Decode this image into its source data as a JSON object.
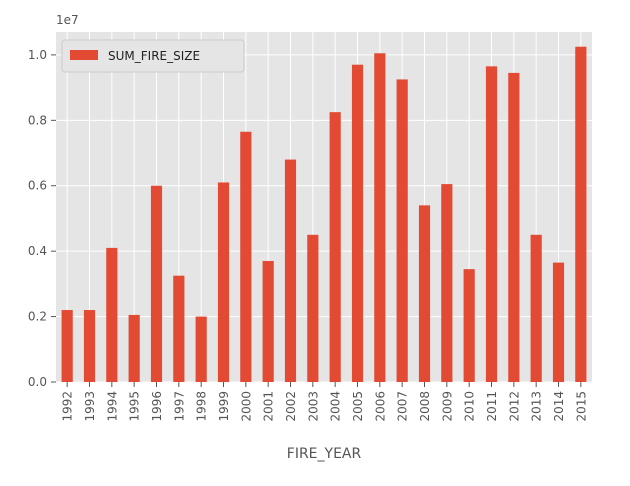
{
  "chart_data": {
    "type": "bar",
    "title": "",
    "xlabel": "FIRE_YEAR",
    "ylabel": "",
    "y_offset_label": "1e7",
    "ylim": [
      0.0,
      1.07
    ],
    "yticks": [
      0.0,
      0.2,
      0.4,
      0.6,
      0.8,
      1.0
    ],
    "ytick_labels": [
      "0.0",
      "0.2",
      "0.4",
      "0.6",
      "0.8",
      "1.0"
    ],
    "grid": true,
    "legend_position": "top-left",
    "categories": [
      "1992",
      "1993",
      "1994",
      "1995",
      "1996",
      "1997",
      "1998",
      "1999",
      "2000",
      "2001",
      "2002",
      "2003",
      "2004",
      "2005",
      "2006",
      "2007",
      "2008",
      "2009",
      "2010",
      "2011",
      "2012",
      "2013",
      "2014",
      "2015"
    ],
    "series": [
      {
        "name": "SUM_FIRE_SIZE",
        "color": "#E24A33",
        "values": [
          0.22,
          0.22,
          0.41,
          0.205,
          0.6,
          0.325,
          0.2,
          0.61,
          0.765,
          0.37,
          0.68,
          0.45,
          0.825,
          0.97,
          1.005,
          0.925,
          0.54,
          0.605,
          0.345,
          0.965,
          0.945,
          0.45,
          0.365,
          1.025
        ]
      }
    ],
    "colors": {
      "plot_background": "#E5E5E5",
      "grid": "#FFFFFF",
      "text": "#555555"
    }
  }
}
